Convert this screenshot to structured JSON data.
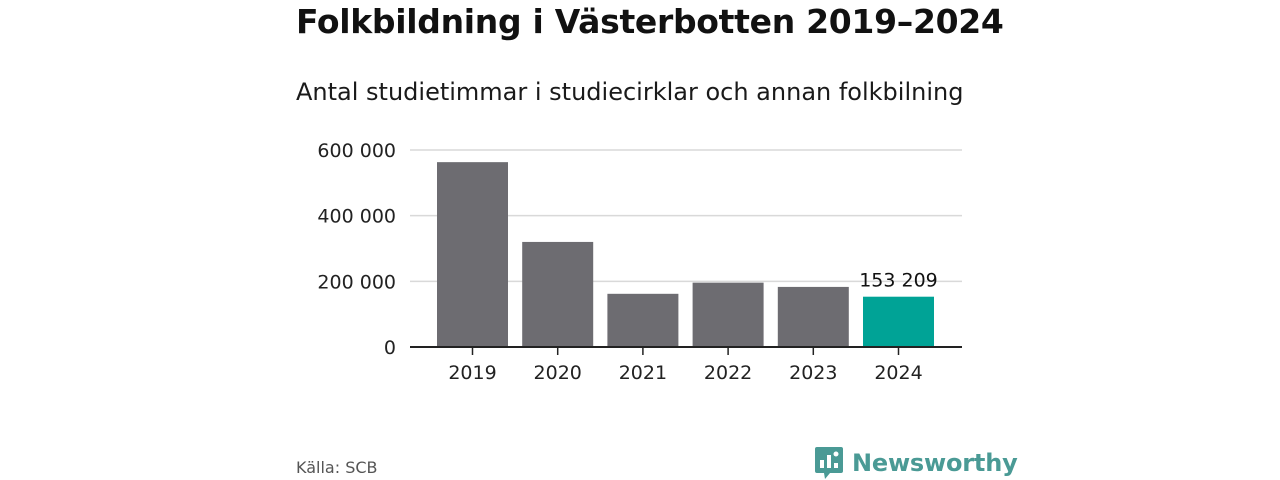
{
  "header": {
    "title": "Folkbildning i Västerbotten 2019–2024",
    "subtitle": "Antal studietimmar i studiecirklar och annan folkbilning"
  },
  "footer": {
    "source": "Källa: SCB",
    "logo_text": "Newsworthy"
  },
  "colors": {
    "bar": "#6d6c71",
    "highlight": "#00a396",
    "grid": "#d9d9d9",
    "axis": "#222222",
    "brand": "#4a9a95"
  },
  "chart_data": {
    "type": "bar",
    "categories": [
      "2019",
      "2020",
      "2021",
      "2022",
      "2023",
      "2024"
    ],
    "values": [
      563000,
      320000,
      162000,
      196000,
      183000,
      153209
    ],
    "ylim": [
      0,
      600000
    ],
    "yticks": [
      0,
      200000,
      400000,
      600000
    ],
    "ytick_labels": [
      "0",
      "200 000",
      "400 000",
      "600 000"
    ],
    "highlight_index": 5,
    "data_label": "153 209",
    "grid": true
  }
}
